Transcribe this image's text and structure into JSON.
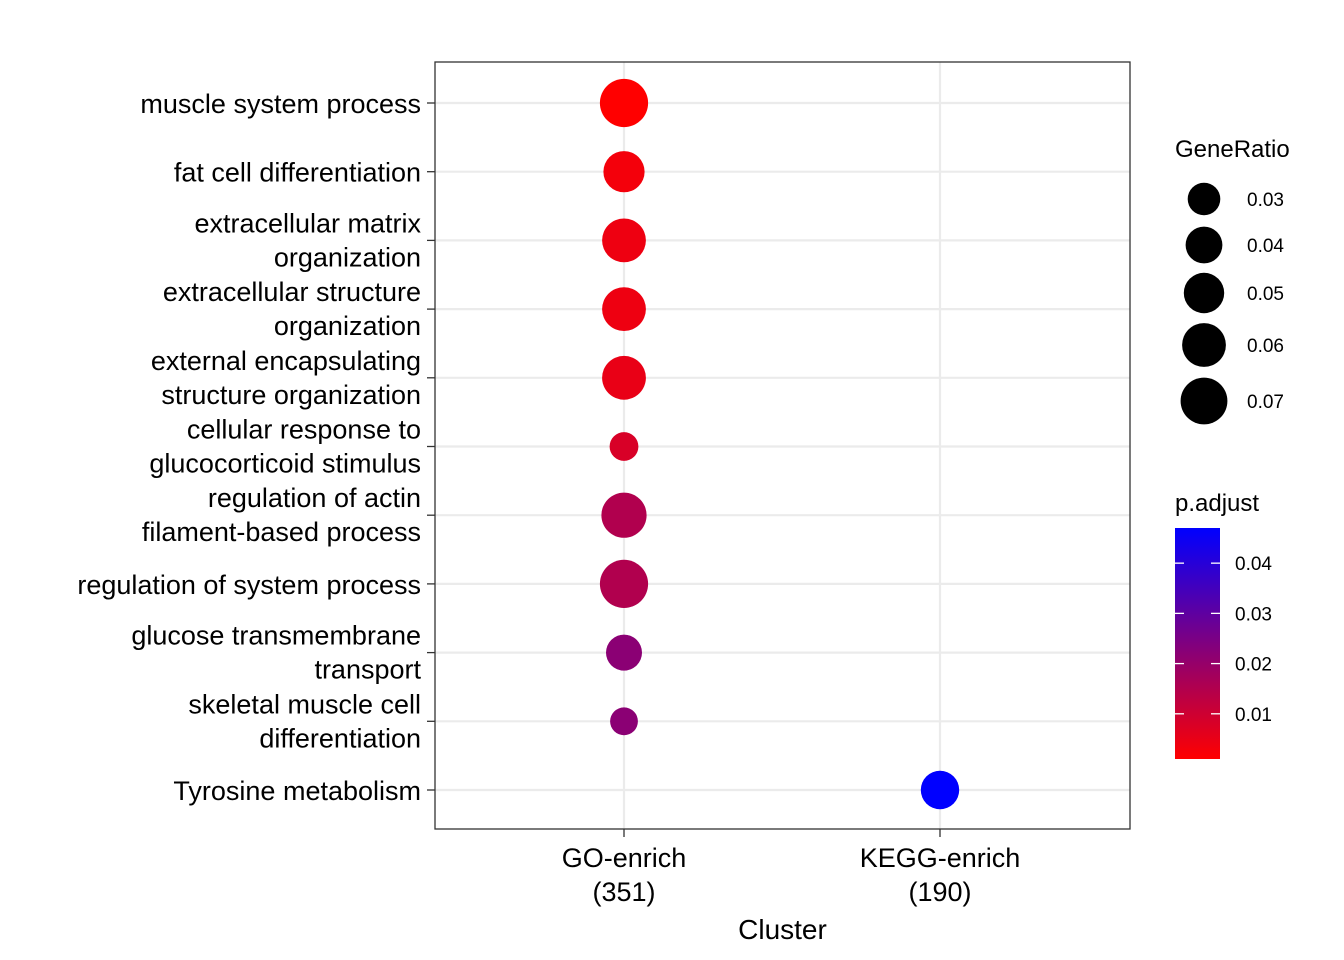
{
  "chart_data": {
    "type": "scatter",
    "title": "",
    "xlabel": "Cluster",
    "ylabel": "",
    "x_categories": [
      {
        "line1": "GO-enrich",
        "line2": "(351)"
      },
      {
        "line1": "KEGG-enrich",
        "line2": "(190)"
      }
    ],
    "y_categories": [
      [
        "muscle system process"
      ],
      [
        "fat cell differentiation"
      ],
      [
        "extracellular matrix",
        "organization"
      ],
      [
        "extracellular structure",
        "organization"
      ],
      [
        "external encapsulating",
        "structure organization"
      ],
      [
        "cellular response to",
        "glucocorticoid stimulus"
      ],
      [
        "regulation of actin",
        "filament-based process"
      ],
      [
        "regulation of system process"
      ],
      [
        "glucose transmembrane",
        "transport"
      ],
      [
        "skeletal muscle cell",
        "differentiation"
      ],
      [
        "Tyrosine metabolism"
      ]
    ],
    "points": [
      {
        "x": 0,
        "y": 0,
        "gene_ratio": 0.075,
        "p_adjust": 0.001
      },
      {
        "x": 0,
        "y": 1,
        "gene_ratio": 0.052,
        "p_adjust": 0.003
      },
      {
        "x": 0,
        "y": 2,
        "gene_ratio": 0.06,
        "p_adjust": 0.004
      },
      {
        "x": 0,
        "y": 3,
        "gene_ratio": 0.06,
        "p_adjust": 0.004
      },
      {
        "x": 0,
        "y": 4,
        "gene_ratio": 0.06,
        "p_adjust": 0.005
      },
      {
        "x": 0,
        "y": 5,
        "gene_ratio": 0.022,
        "p_adjust": 0.008
      },
      {
        "x": 0,
        "y": 6,
        "gene_ratio": 0.065,
        "p_adjust": 0.015
      },
      {
        "x": 0,
        "y": 7,
        "gene_ratio": 0.075,
        "p_adjust": 0.015
      },
      {
        "x": 0,
        "y": 8,
        "gene_ratio": 0.038,
        "p_adjust": 0.022
      },
      {
        "x": 0,
        "y": 9,
        "gene_ratio": 0.02,
        "p_adjust": 0.022
      },
      {
        "x": 1,
        "y": 10,
        "gene_ratio": 0.044,
        "p_adjust": 0.047
      }
    ],
    "size_legend": {
      "title": "GeneRatio",
      "breaks": [
        0.03,
        0.04,
        0.05,
        0.06,
        0.07
      ],
      "labels": [
        "0.03",
        "0.04",
        "0.05",
        "0.06",
        "0.07"
      ]
    },
    "color_legend": {
      "title": "p.adjust",
      "low_color": "#FF0000",
      "high_color": "#0000FF",
      "range": [
        0.001,
        0.047
      ],
      "breaks": [
        0.01,
        0.02,
        0.03,
        0.04
      ],
      "labels": [
        "0.01",
        "0.02",
        "0.03",
        "0.04"
      ]
    },
    "grid": true,
    "legend_position": "right"
  }
}
